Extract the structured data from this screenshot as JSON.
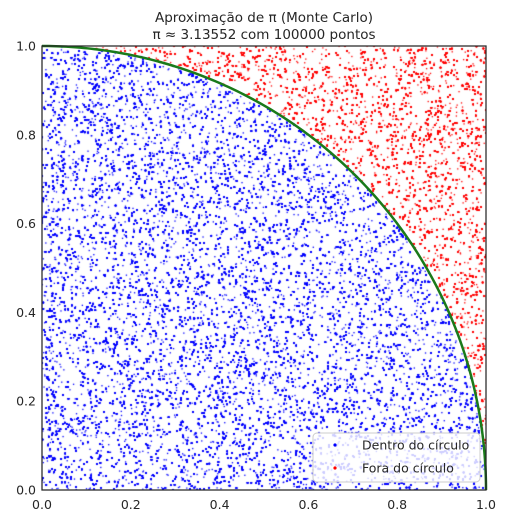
{
  "chart_data": {
    "type": "scatter",
    "title": "Aproximação de π (Monte Carlo)",
    "subtitle": "π ≈ 3.13552 com 100000 pontos",
    "n_points": 100000,
    "pi_estimate": 3.13552,
    "xlim": [
      0.0,
      1.0
    ],
    "ylim": [
      0.0,
      1.0
    ],
    "xticks": [
      "0.0",
      "0.2",
      "0.4",
      "0.6",
      "0.8",
      "1.0"
    ],
    "yticks": [
      "0.0",
      "0.2",
      "0.4",
      "0.6",
      "0.8",
      "1.0"
    ],
    "xtick_values": [
      0.0,
      0.2,
      0.4,
      0.6,
      0.8,
      1.0
    ],
    "ytick_values": [
      0.0,
      0.2,
      0.4,
      0.6,
      0.8,
      1.0
    ],
    "grid": false,
    "legend_position": "bottom-right",
    "series": [
      {
        "name": "Dentro do círculo",
        "color": "#0000ff",
        "fraction": 0.78388
      },
      {
        "name": "Fora do círculo",
        "color": "#ff0000",
        "fraction": 0.21612
      }
    ],
    "boundary_curve": {
      "equation": "x^2 + y^2 = 1",
      "color": "#1a7a1a"
    }
  }
}
